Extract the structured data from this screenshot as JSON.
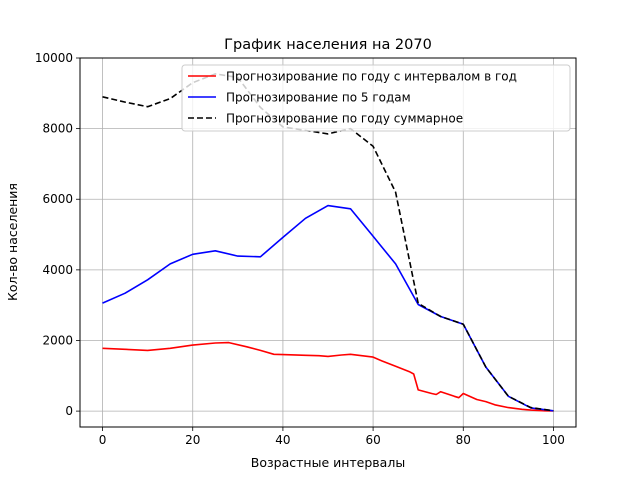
{
  "chart_data": {
    "type": "line",
    "title": "График населения на 2070",
    "xlabel": "Возрастные интервалы",
    "ylabel": "Кол-во населения",
    "xlim": [
      -5,
      105
    ],
    "ylim": [
      -450,
      10000
    ],
    "xticks": [
      0,
      20,
      40,
      60,
      80,
      100
    ],
    "yticks": [
      0,
      2000,
      4000,
      6000,
      8000,
      10000
    ],
    "xtick_labels": [
      "0",
      "20",
      "40",
      "60",
      "80",
      "100"
    ],
    "ytick_labels": [
      "0",
      "2000",
      "4000",
      "6000",
      "8000",
      "10000"
    ],
    "grid": true,
    "legend_position": "top-right",
    "series": [
      {
        "name": "Прогнозирование по году с интервалом в год",
        "color": "#ff0000",
        "style": "solid",
        "x": [
          0,
          5,
          10,
          15,
          20,
          25,
          28,
          32,
          35,
          38,
          40,
          45,
          48,
          50,
          53,
          55,
          60,
          62,
          65,
          68,
          69,
          70,
          73,
          74,
          75,
          78,
          79,
          80,
          83,
          85,
          87,
          90,
          93,
          95,
          98,
          100
        ],
        "y": [
          1780,
          1750,
          1720,
          1780,
          1870,
          1930,
          1940,
          1820,
          1720,
          1610,
          1600,
          1580,
          1570,
          1550,
          1590,
          1610,
          1530,
          1420,
          1270,
          1120,
          1050,
          600,
          500,
          470,
          550,
          420,
          380,
          500,
          330,
          270,
          180,
          100,
          50,
          30,
          10,
          5
        ]
      },
      {
        "name": "Прогнозирование по 5 годам",
        "color": "#0000ff",
        "style": "solid",
        "x": [
          0,
          5,
          10,
          15,
          20,
          25,
          30,
          35,
          40,
          45,
          50,
          55,
          60,
          65,
          70,
          75,
          80,
          85,
          90,
          95,
          100
        ],
        "y": [
          3060,
          3340,
          3720,
          4170,
          4440,
          4540,
          4390,
          4370,
          4920,
          5460,
          5820,
          5730,
          4950,
          4170,
          3020,
          2680,
          2460,
          1250,
          420,
          90,
          10
        ]
      },
      {
        "name": "Прогнозирование по году суммарное",
        "color": "#000000",
        "style": "dashed",
        "x": [
          0,
          5,
          10,
          15,
          20,
          25,
          30,
          35,
          40,
          45,
          50,
          55,
          60,
          65,
          70,
          75,
          80,
          85,
          90,
          95,
          100
        ],
        "y": [
          8900,
          8750,
          8620,
          8850,
          9300,
          9550,
          9450,
          8600,
          8050,
          7950,
          7850,
          8000,
          7500,
          6200,
          3050,
          2680,
          2460,
          1250,
          420,
          100,
          10
        ]
      }
    ]
  }
}
